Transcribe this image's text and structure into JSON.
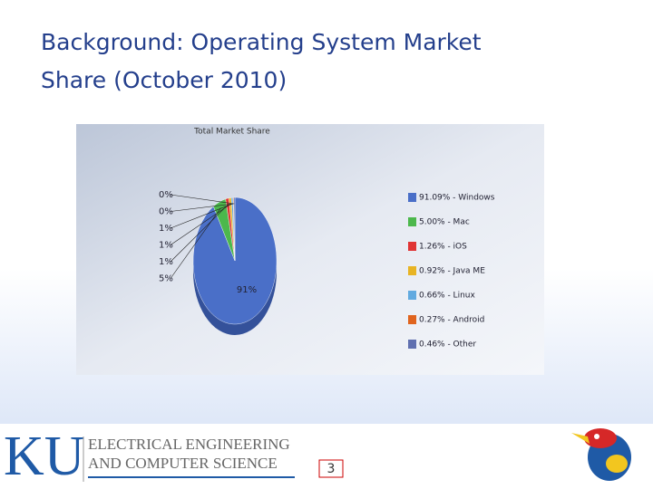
{
  "slide": {
    "title_lines": [
      "Background: Operating System Market",
      "Share (October 2010)"
    ],
    "page_number": "3"
  },
  "footer": {
    "logo": "KU",
    "dept_lines": [
      "ELECTRICAL ENGINEERING",
      "AND COMPUTER SCIENCE"
    ]
  },
  "chart_data": {
    "type": "pie",
    "title": "Total Market Share",
    "categories": [
      "91.09% - Windows",
      "5.00% - Mac",
      "1.26% - iOS",
      "0.92% - Java ME",
      "0.66% - Linux",
      "0.27% - Android",
      "0.46% - Other"
    ],
    "values": [
      91.09,
      5.0,
      1.26,
      0.92,
      0.66,
      0.27,
      0.46
    ],
    "value_labels": [
      "91%",
      "5%",
      "1%",
      "1%",
      "1%",
      "0%",
      "0%"
    ],
    "colors": [
      "#4a6fc8",
      "#4cb84c",
      "#e03434",
      "#e8b424",
      "#62aae0",
      "#e0641e",
      "#6070b0"
    ],
    "legend": "right"
  }
}
